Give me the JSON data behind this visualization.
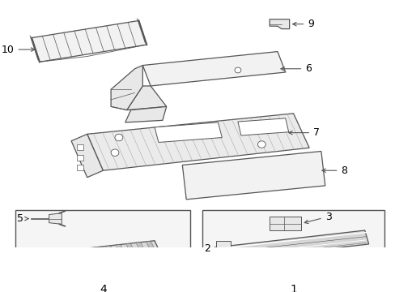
{
  "bg_color": "#ffffff",
  "line_color": "#555555",
  "label_color": "#000000",
  "fill_light": "#f2f2f2",
  "fill_mid": "#e8e8e8",
  "fill_dark": "#d8d8d8",
  "font_size": 9
}
